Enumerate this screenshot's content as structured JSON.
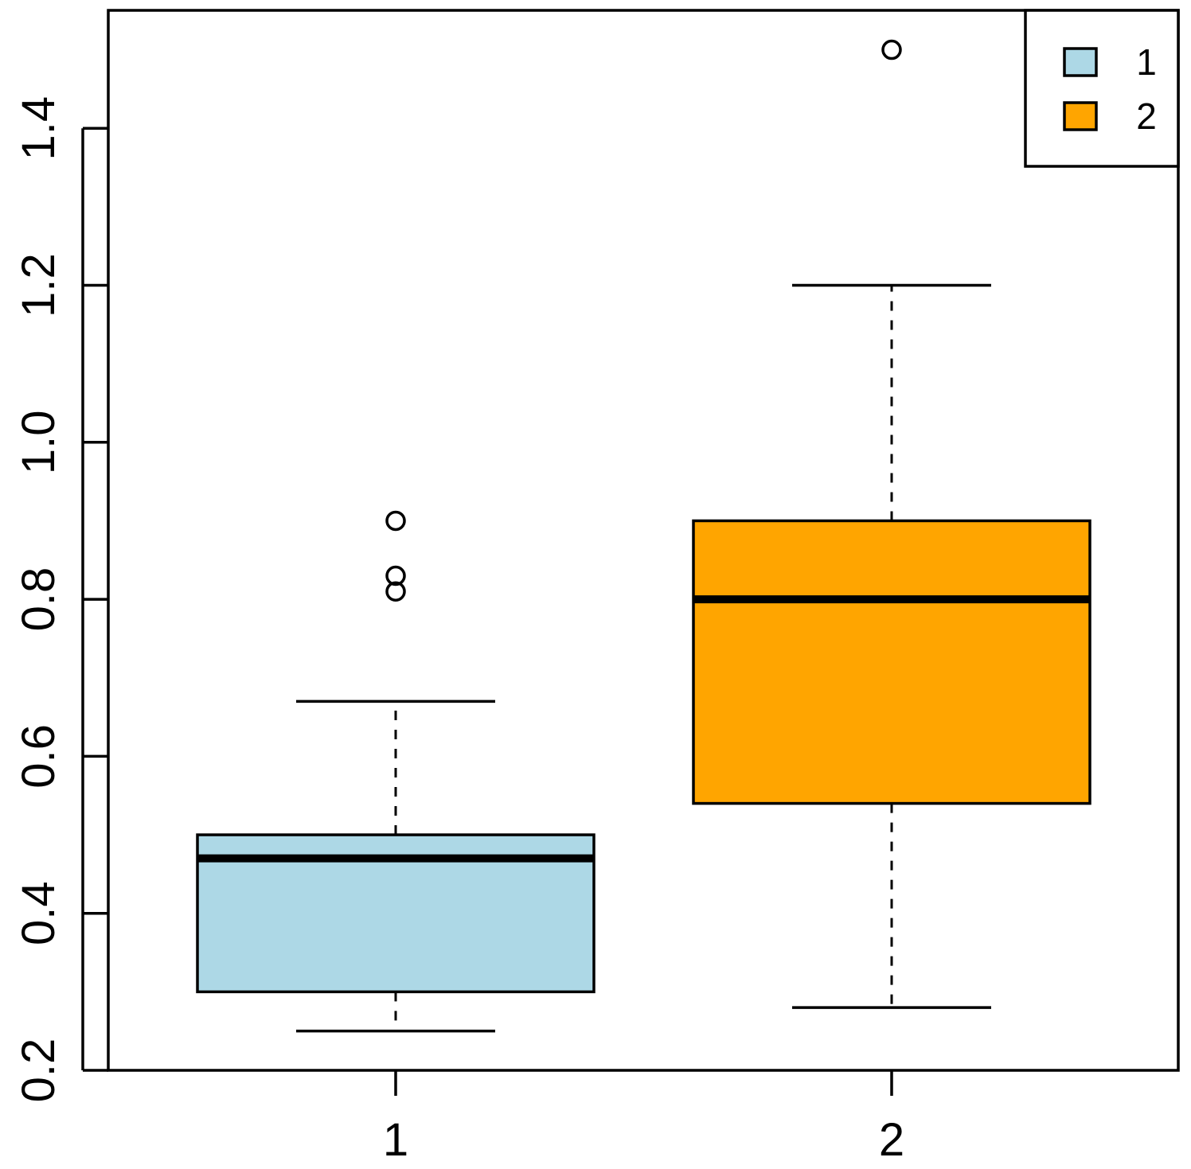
{
  "chart_data": {
    "type": "box",
    "title": "",
    "xlabel": "",
    "ylabel": "",
    "ylim": [
      0.2,
      1.55
    ],
    "y_ticks": [
      "0.2",
      "0.4",
      "0.6",
      "0.8",
      "1.0",
      "1.2",
      "1.4"
    ],
    "categories": [
      "1",
      "2"
    ],
    "grid": false,
    "legend_position": "top-right",
    "series": [
      {
        "category": "1",
        "color": "#ADD8E6",
        "whisker_low": 0.25,
        "q1": 0.3,
        "median": 0.47,
        "q3": 0.5,
        "whisker_high": 0.67,
        "outliers": [
          0.81,
          0.83,
          0.9
        ]
      },
      {
        "category": "2",
        "color": "#FFA500",
        "whisker_low": 0.28,
        "q1": 0.54,
        "median": 0.8,
        "q3": 0.9,
        "whisker_high": 1.2,
        "outliers": [
          1.5
        ]
      }
    ],
    "legend": [
      {
        "label": "1",
        "color": "#ADD8E6"
      },
      {
        "label": "2",
        "color": "#FFA500"
      }
    ]
  }
}
